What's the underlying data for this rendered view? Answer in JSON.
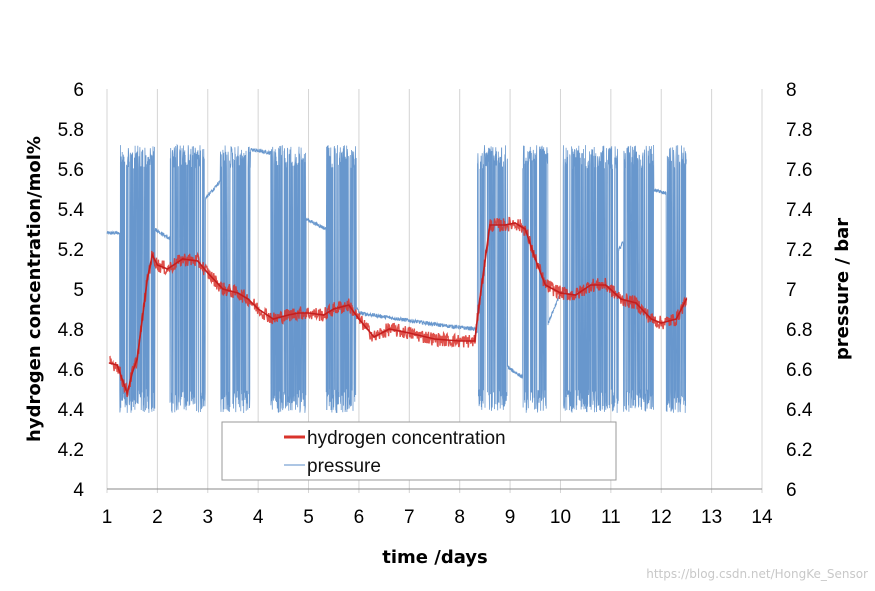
{
  "chart_data": {
    "type": "line",
    "xlabel": "time /days",
    "ylabel_left": "hydrogen concentration/mol%",
    "ylabel_right": "pressure / bar",
    "xlim": [
      1,
      14
    ],
    "ylim_left": [
      4,
      6
    ],
    "ylim_right": [
      6,
      8
    ],
    "x_ticks": [
      "1",
      "2",
      "3",
      "4",
      "5",
      "6",
      "7",
      "8",
      "9",
      "10",
      "11",
      "12",
      "13",
      "14"
    ],
    "y_left_ticks": [
      "4",
      "4.2",
      "4.4",
      "4.6",
      "4.8",
      "5",
      "5.2",
      "5.4",
      "5.6",
      "5.8",
      "6"
    ],
    "y_right_ticks": [
      "6",
      "6.2",
      "6.4",
      "6.6",
      "6.8",
      "7",
      "7.2",
      "7.4",
      "7.6",
      "7.8",
      "8"
    ],
    "grid": "vertical",
    "legend_position": "bottom-center",
    "series": [
      {
        "name": "hydrogen concentration",
        "axis": "left",
        "color": "#d9332b",
        "x": [
          1.05,
          1.2,
          1.3,
          1.4,
          1.5,
          1.6,
          1.7,
          1.8,
          1.9,
          2.0,
          2.2,
          2.5,
          2.8,
          3.0,
          3.3,
          3.6,
          3.8,
          4.0,
          4.3,
          4.6,
          4.8,
          5.0,
          5.3,
          5.5,
          5.8,
          6.0,
          6.3,
          6.6,
          7.0,
          7.5,
          8.0,
          8.3,
          8.4,
          8.6,
          8.9,
          9.1,
          9.3,
          9.5,
          9.7,
          10.0,
          10.3,
          10.6,
          10.9,
          11.2,
          11.5,
          11.8,
          12.0,
          12.3,
          12.5
        ],
        "values": [
          4.63,
          4.62,
          4.55,
          4.48,
          4.58,
          4.65,
          4.85,
          5.05,
          5.17,
          5.12,
          5.1,
          5.15,
          5.14,
          5.08,
          5.0,
          4.98,
          4.95,
          4.9,
          4.85,
          4.87,
          4.88,
          4.88,
          4.87,
          4.9,
          4.92,
          4.85,
          4.76,
          4.8,
          4.78,
          4.75,
          4.74,
          4.74,
          4.95,
          5.32,
          5.32,
          5.33,
          5.3,
          5.15,
          5.02,
          4.98,
          4.97,
          5.02,
          5.02,
          4.95,
          4.93,
          4.85,
          4.83,
          4.85,
          4.95
        ]
      },
      {
        "name": "pressure",
        "axis": "right",
        "color": "#5b8ec9",
        "bursts": [
          [
            1.25,
            1.95
          ],
          [
            2.25,
            2.95
          ],
          [
            3.25,
            3.85
          ],
          [
            4.25,
            4.95
          ],
          [
            5.35,
            5.95
          ],
          [
            8.35,
            8.95
          ],
          [
            9.25,
            9.75
          ],
          [
            10.05,
            11.15
          ],
          [
            11.25,
            11.85
          ],
          [
            12.1,
            12.55
          ]
        ],
        "oscillation_range": [
          6.38,
          7.72
        ],
        "baseline_x": [
          1.0,
          1.25,
          1.95,
          2.25,
          3.8,
          4.25,
          4.95,
          5.35,
          6.0,
          6.8,
          7.6,
          8.3,
          9.0,
          9.3,
          10.0,
          10.5,
          11.0,
          11.8,
          12.5
        ],
        "baseline_values": [
          7.28,
          7.28,
          7.3,
          7.25,
          7.7,
          7.68,
          7.35,
          7.3,
          6.88,
          6.85,
          6.82,
          6.8,
          6.6,
          6.55,
          6.98,
          6.95,
          7.12,
          7.5,
          7.45
        ]
      }
    ]
  },
  "watermark": "https://blog.csdn.net/HongKe_Sensor"
}
